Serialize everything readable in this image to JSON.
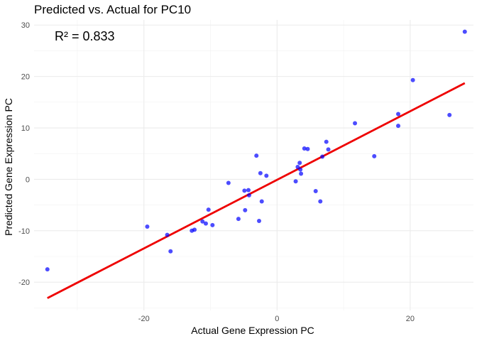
{
  "chart_data": {
    "type": "scatter",
    "title": "Predicted vs. Actual for PC10",
    "xlabel": "Actual Gene Expression PC",
    "ylabel": "Predicted Gene Expression PC",
    "xlim": [
      -36.5,
      29.5
    ],
    "ylim": [
      -25.5,
      31.0
    ],
    "x_major_ticks": [
      -20,
      0,
      20
    ],
    "x_tick_labels": [
      "-20",
      "0",
      "20"
    ],
    "x_minor_ticks": [
      -30,
      -10,
      10
    ],
    "y_major_ticks": [
      -20,
      -10,
      0,
      10,
      20,
      30
    ],
    "y_tick_labels": [
      "-20",
      "-10",
      "0",
      "10",
      "20",
      "30"
    ],
    "y_minor_ticks": [
      -25,
      -15,
      -5,
      5,
      15,
      25
    ],
    "annotation": "R² = 0.833",
    "points_color": "#0000ff",
    "fit_color": "#ee0000",
    "points": [
      {
        "x": -34.5,
        "y": -17.5
      },
      {
        "x": -19.5,
        "y": -9.2
      },
      {
        "x": -16.5,
        "y": -10.8
      },
      {
        "x": -16.0,
        "y": -14.0
      },
      {
        "x": -12.8,
        "y": -10.0
      },
      {
        "x": -12.4,
        "y": -9.8
      },
      {
        "x": -11.2,
        "y": -8.2
      },
      {
        "x": -10.7,
        "y": -8.6
      },
      {
        "x": -10.3,
        "y": -5.9
      },
      {
        "x": -9.7,
        "y": -8.9
      },
      {
        "x": -7.3,
        "y": -0.7
      },
      {
        "x": -5.8,
        "y": -7.7
      },
      {
        "x": -4.9,
        "y": -2.2
      },
      {
        "x": -4.8,
        "y": -6.0
      },
      {
        "x": -4.3,
        "y": -2.1
      },
      {
        "x": -4.2,
        "y": -3.1
      },
      {
        "x": -3.1,
        "y": 4.6
      },
      {
        "x": -2.7,
        "y": -8.1
      },
      {
        "x": -2.5,
        "y": 1.2
      },
      {
        "x": -2.3,
        "y": -4.3
      },
      {
        "x": -1.6,
        "y": 0.7
      },
      {
        "x": 2.8,
        "y": -0.4
      },
      {
        "x": 3.1,
        "y": 2.4
      },
      {
        "x": 3.4,
        "y": 3.2
      },
      {
        "x": 3.5,
        "y": 1.9
      },
      {
        "x": 3.6,
        "y": 1.1
      },
      {
        "x": 4.1,
        "y": 6.0
      },
      {
        "x": 4.6,
        "y": 5.9
      },
      {
        "x": 5.8,
        "y": -2.3
      },
      {
        "x": 6.5,
        "y": -4.3
      },
      {
        "x": 6.8,
        "y": 4.4
      },
      {
        "x": 7.4,
        "y": 7.3
      },
      {
        "x": 7.7,
        "y": 5.8
      },
      {
        "x": 11.7,
        "y": 10.9
      },
      {
        "x": 14.6,
        "y": 4.5
      },
      {
        "x": 18.2,
        "y": 12.7
      },
      {
        "x": 18.2,
        "y": 10.4
      },
      {
        "x": 20.4,
        "y": 19.3
      },
      {
        "x": 25.9,
        "y": 12.5
      },
      {
        "x": 28.2,
        "y": 28.7
      }
    ],
    "fit_line": {
      "x": [
        -34.5,
        28.2
      ],
      "y": [
        -23.1,
        18.7
      ]
    }
  }
}
